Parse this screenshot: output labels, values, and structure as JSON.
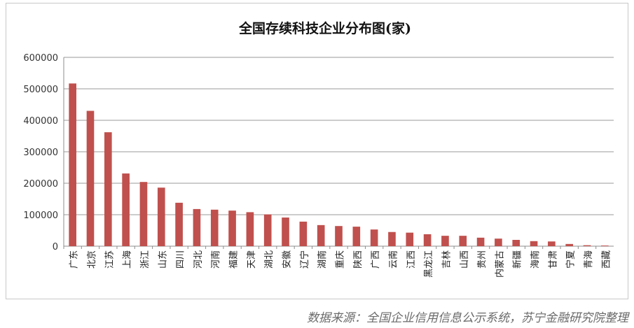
{
  "chart_data": {
    "type": "bar",
    "title": "全国存续科技企业分布图(家)",
    "categories": [
      "广东",
      "北京",
      "江苏",
      "上海",
      "浙江",
      "山东",
      "四川",
      "河北",
      "河南",
      "福建",
      "天津",
      "湖北",
      "安徽",
      "辽宁",
      "湖南",
      "重庆",
      "陕西",
      "广西",
      "云南",
      "江西",
      "黑龙江",
      "吉林",
      "山西",
      "贵州",
      "内蒙古",
      "新疆",
      "海南",
      "甘肃",
      "宁夏",
      "青海",
      "西藏"
    ],
    "values": [
      517000,
      430000,
      362000,
      231000,
      204000,
      186000,
      138000,
      118000,
      116000,
      113000,
      108000,
      101000,
      91000,
      78000,
      67000,
      64000,
      62000,
      53000,
      45000,
      43000,
      38000,
      33000,
      33000,
      27000,
      24000,
      20000,
      16000,
      15000,
      7000,
      3000,
      2000
    ],
    "ylim": [
      0,
      600000
    ],
    "yticks": [
      "0",
      "100000",
      "200000",
      "300000",
      "400000",
      "500000",
      "600000"
    ],
    "xlabel": "",
    "ylabel": "",
    "grid": true,
    "bar_color": "#c0504d"
  },
  "source_note": "数据来源：全国企业信用信息公示系统，苏宁金融研究院整理"
}
